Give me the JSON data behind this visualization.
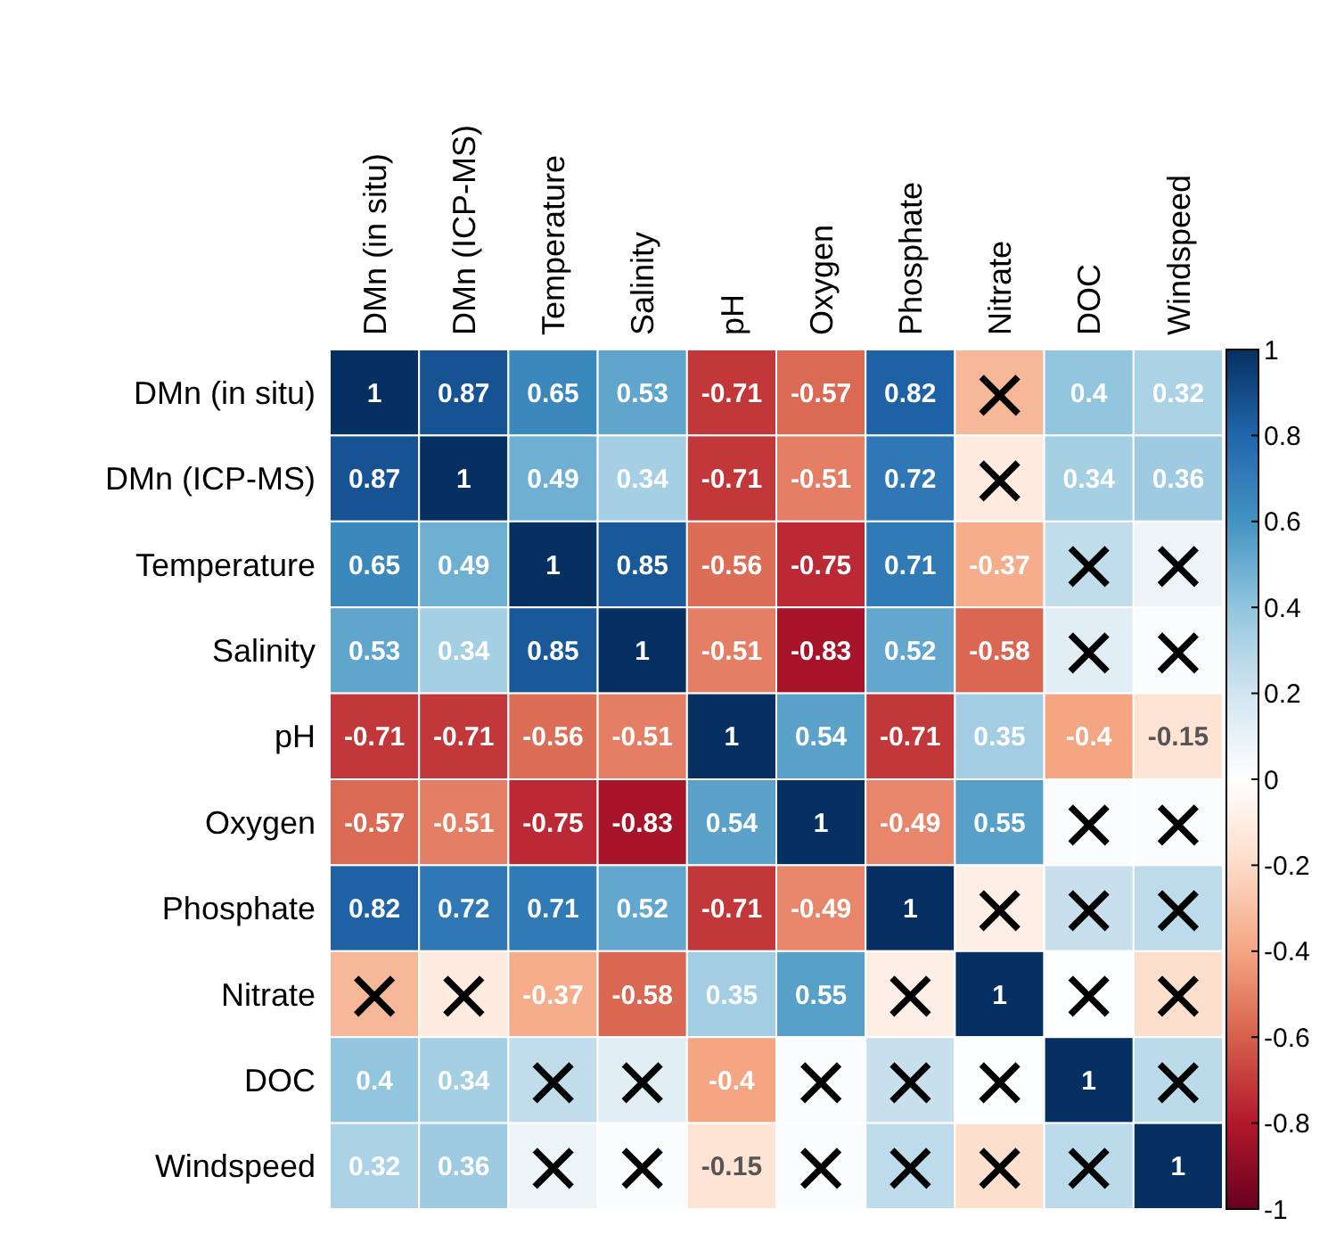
{
  "chart_data": {
    "type": "heatmap",
    "categories": [
      "DMn (in situ)",
      "DMn (ICP-MS)",
      "Temperature",
      "Salinity",
      "pH",
      "Oxygen",
      "Phosphate",
      "Nitrate",
      "DOC",
      "Windspeed"
    ],
    "y_categories": [
      "DMn (in situ)",
      "DMn (ICP-MS)",
      "Temperature",
      "Salinity",
      "pH",
      "Oxygen",
      "Phosphate",
      "Nitrate",
      "DOC",
      "Windspeed"
    ],
    "cells": [
      [
        1,
        0.87,
        0.65,
        0.53,
        -0.71,
        -0.57,
        0.82,
        -0.33,
        0.4,
        0.32
      ],
      [
        0.87,
        1,
        0.49,
        0.34,
        -0.71,
        -0.51,
        0.72,
        -0.11,
        0.34,
        0.36
      ],
      [
        0.65,
        0.49,
        1,
        0.85,
        -0.56,
        -0.75,
        0.71,
        -0.37,
        0.25,
        0.08
      ],
      [
        0.53,
        0.34,
        0.85,
        1,
        -0.51,
        -0.83,
        0.52,
        -0.58,
        0.13,
        0.02
      ],
      [
        -0.71,
        -0.71,
        -0.56,
        -0.51,
        1,
        0.54,
        -0.71,
        0.35,
        -0.4,
        -0.15
      ],
      [
        -0.57,
        -0.51,
        -0.75,
        -0.83,
        0.54,
        1,
        -0.49,
        0.55,
        0.02,
        0.02
      ],
      [
        0.82,
        0.72,
        0.71,
        0.52,
        -0.71,
        -0.49,
        1,
        -0.09,
        0.23,
        0.26
      ],
      [
        -0.33,
        -0.11,
        -0.37,
        -0.58,
        0.35,
        0.55,
        -0.09,
        1,
        0.01,
        -0.18
      ],
      [
        0.4,
        0.34,
        0.25,
        0.13,
        -0.4,
        0.02,
        0.23,
        0.01,
        1,
        0.27
      ],
      [
        0.32,
        0.36,
        0.08,
        0.02,
        -0.15,
        0.02,
        0.26,
        -0.18,
        0.27,
        1
      ]
    ],
    "cell_labels": [
      [
        "1",
        "0.87",
        "0.65",
        "0.53",
        "-0.71",
        "-0.57",
        "0.82",
        "×",
        "0.4",
        "0.32"
      ],
      [
        "0.87",
        "1",
        "0.49",
        "0.34",
        "-0.71",
        "-0.51",
        "0.72",
        "×",
        "0.34",
        "0.36"
      ],
      [
        "0.65",
        "0.49",
        "1",
        "0.85",
        "-0.56",
        "-0.75",
        "0.71",
        "-0.37",
        "×",
        "×"
      ],
      [
        "0.53",
        "0.34",
        "0.85",
        "1",
        "-0.51",
        "-0.83",
        "0.52",
        "-0.58",
        "×",
        "×"
      ],
      [
        "-0.71",
        "-0.71",
        "-0.56",
        "-0.51",
        "1",
        "0.54",
        "-0.71",
        "0.35",
        "-0.4",
        "-0.15"
      ],
      [
        "-0.57",
        "-0.51",
        "-0.75",
        "-0.83",
        "0.54",
        "1",
        "-0.49",
        "0.55",
        "×",
        "×"
      ],
      [
        "0.82",
        "0.72",
        "0.71",
        "0.52",
        "-0.71",
        "-0.49",
        "1",
        "×",
        "×",
        "×"
      ],
      [
        "×",
        "×",
        "-0.37",
        "-0.58",
        "0.35",
        "0.55",
        "×",
        "1",
        "×",
        "×"
      ],
      [
        "0.4",
        "0.34",
        "×",
        "×",
        "-0.4",
        "×",
        "×",
        "×",
        "1",
        "×"
      ],
      [
        "0.32",
        "0.36",
        "×",
        "×",
        "-0.15",
        "×",
        "×",
        "×",
        "×",
        "1"
      ]
    ],
    "clim": [
      -1,
      1
    ],
    "cticks": [
      {
        "value": 1,
        "label": "1"
      },
      {
        "value": 0.8,
        "label": "0.8"
      },
      {
        "value": 0.6,
        "label": "0.6"
      },
      {
        "value": 0.4,
        "label": "0.4"
      },
      {
        "value": 0.2,
        "label": "0.2"
      },
      {
        "value": 0,
        "label": "0"
      },
      {
        "value": -0.2,
        "label": "-0.2"
      },
      {
        "value": -0.4,
        "label": "-0.4"
      },
      {
        "value": -0.6,
        "label": "-0.6"
      },
      {
        "value": -0.8,
        "label": "-0.8"
      },
      {
        "value": -1,
        "label": "-1"
      }
    ]
  }
}
